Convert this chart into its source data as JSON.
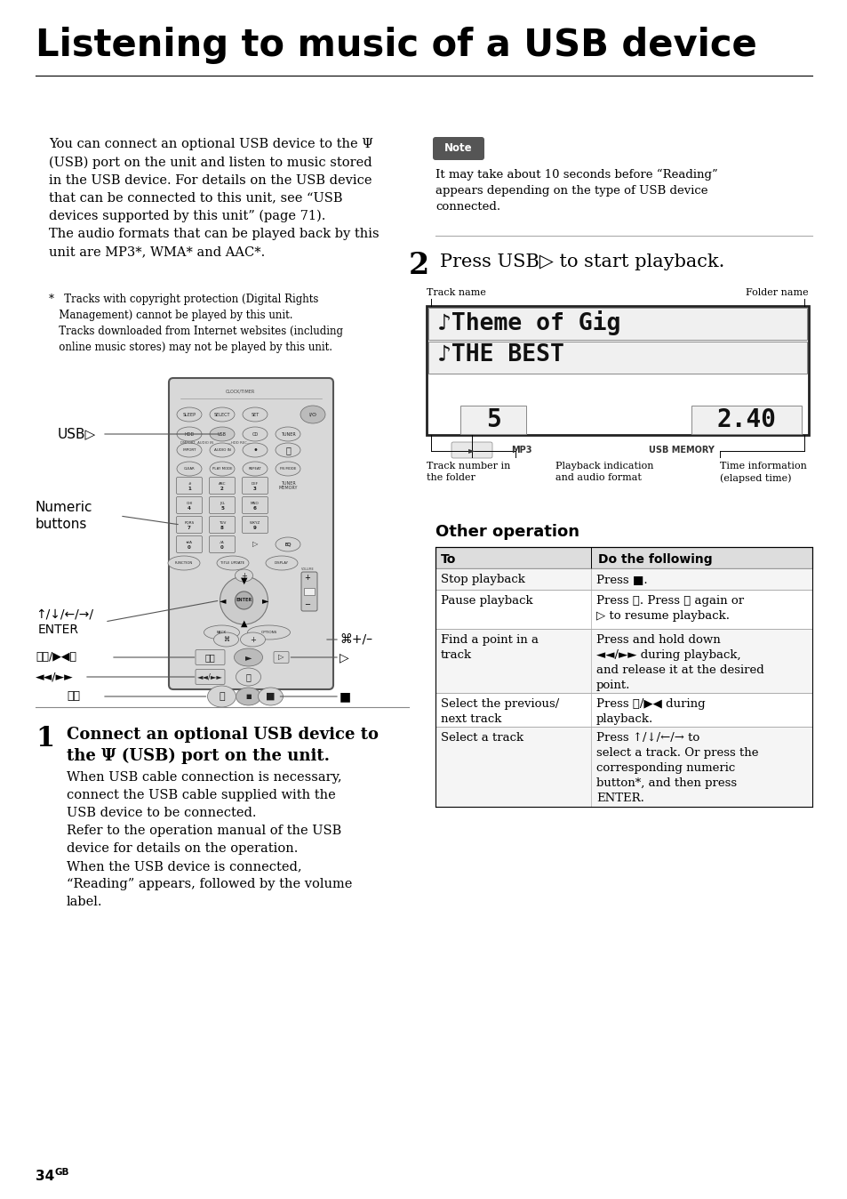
{
  "title": "Listening to music of a USB device",
  "page_num": "34",
  "page_suffix": "GB",
  "bg_color": "#ffffff",
  "text_color": "#000000",
  "intro_text": "You can connect an optional USB device to the Ψ\n(USB) port on the unit and listen to music stored\nin the USB device. For details on the USB device\nthat can be connected to this unit, see “USB\ndevices supported by this unit” (page 71).\nThe audio formats that can be played back by this\nunit are MP3*, WMA* and AAC*.",
  "footnote_star": "*",
  "footnote_text": "Tracks with copyright protection (Digital Rights\n   Management) cannot be played by this unit.\n   Tracks downloaded from Internet websites (including\n   online music stores) may not be played by this unit.",
  "note_label": "Note",
  "note_text": "It may take about 10 seconds before “Reading”\nappears depending on the type of USB device\nconnected.",
  "step2_num": "2",
  "step2_text": "Press USB▷ to start playback.",
  "display_line1": "♪Theme of Gig",
  "display_line2": "♪THE BEST",
  "display_num_left": "5",
  "display_num_right": "2.40",
  "display_play_icon": "►",
  "display_mp3": "MP3",
  "display_usb": "USB MEMORY",
  "label_track_name": "Track name",
  "label_folder_name": "Folder name",
  "label_track_num": "Track number in\nthe folder",
  "label_playback": "Playback indication\nand audio format",
  "label_time": "Time information\n(elapsed time)",
  "usb_label": "USB▷",
  "numeric_label": "Numeric\nbuttons",
  "arrow_label": "↑/↓/←/→/",
  "enter_label": "ENTER",
  "skip_label": "⏮⏭/▶◀⏭",
  "rew_ff_label": "◄◄/►►",
  "pause_label": "⏸",
  "folder_label": "⌘+/–",
  "play_label": "▷",
  "stop_label": "■",
  "step1_num": "1",
  "step1_title": "Connect an optional USB device to\nthe Ψ (USB) port on the unit.",
  "step1_para1": "When USB cable connection is necessary,\nconnect the USB cable supplied with the\nUSB device to be connected.\nRefer to the operation manual of the USB\ndevice for details on the operation.\nWhen the USB device is connected,\n“Reading” appears, followed by the volume\nlabel.",
  "other_op_title": "Other operation",
  "table_col1_header": "To",
  "table_col2_header": "Do the following",
  "table_rows": [
    {
      "col1": "Stop playback",
      "col2": "Press ■."
    },
    {
      "col1": "Pause playback",
      "col2": "Press ⏸. Press ⏸ again or\n▷ to resume playback."
    },
    {
      "col1": "Find a point in a\ntrack",
      "col2": "Press and hold down\n◄◄/►► during playback,\nand release it at the desired\npoint."
    },
    {
      "col1": "Select the previous/\nnext track",
      "col2": "Press ⏮/▶◀ during\nplayback."
    },
    {
      "col1": "Select a track",
      "col2": "Press ↑/↓/←/→ to\nselect a track. Or press the\ncorresponding numeric\nbutton*, and then press\nENTER."
    }
  ]
}
